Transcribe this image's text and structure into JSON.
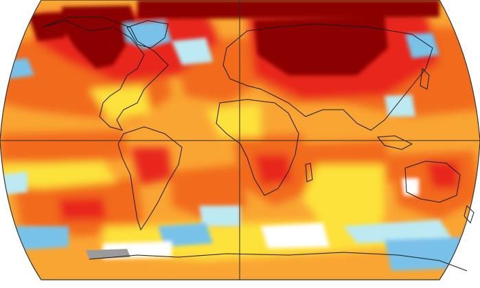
{
  "map": {
    "projection": "robinson",
    "subject": "temperature-anomaly",
    "palette": {
      "hot_extreme": "#8b0000",
      "hot": "#e8261a",
      "warm": "#f26b1d",
      "mild_warm": "#f9a533",
      "slight_warm": "#fde23a",
      "neutral": "#ffffff",
      "slight_cool": "#bde9f2",
      "cool": "#78c2ea",
      "no_data": "#9b9b9b",
      "coastline": "#1a1a1a",
      "frame": "#333333",
      "graticule": "#2a2a2a"
    },
    "graticule": {
      "equator": true,
      "prime_meridian": true
    },
    "legend": false
  }
}
